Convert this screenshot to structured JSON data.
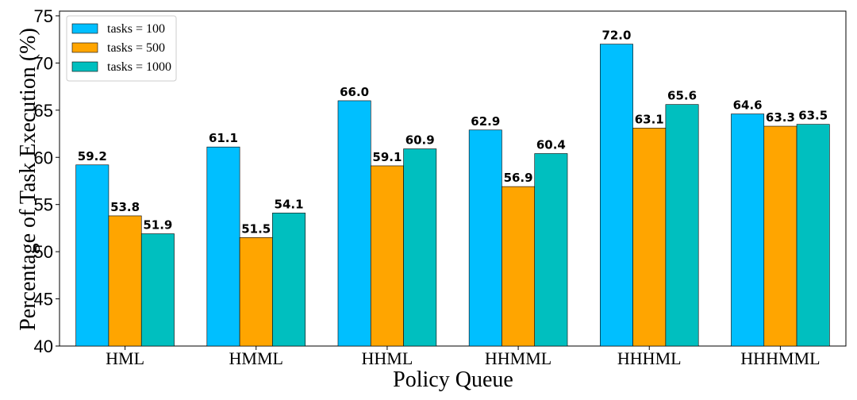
{
  "chart_data": {
    "type": "bar",
    "xlabel": "Policy Queue",
    "ylabel": "Percentage of Task Execution (%)",
    "ylim": [
      40,
      75.5
    ],
    "yticks": [
      40,
      45,
      50,
      55,
      60,
      65,
      70,
      75
    ],
    "categories": [
      "HML",
      "HMML",
      "HHML",
      "HHMML",
      "HHHML",
      "HHHMML"
    ],
    "series": [
      {
        "name": "tasks = 100",
        "color": "#00BFFF",
        "values": [
          59.2,
          61.1,
          66.0,
          62.9,
          72.0,
          64.6
        ]
      },
      {
        "name": "tasks = 500",
        "color": "#FFA500",
        "values": [
          53.8,
          51.5,
          59.1,
          56.9,
          63.1,
          63.3
        ]
      },
      {
        "name": "tasks = 1000",
        "color": "#00BFBF",
        "values": [
          51.9,
          54.1,
          60.9,
          60.4,
          65.6,
          63.5
        ]
      }
    ],
    "value_labels": [
      [
        "59.2",
        "61.1",
        "66.0",
        "62.9",
        "72.0",
        "64.6"
      ],
      [
        "53.8",
        "51.5",
        "59.1",
        "56.9",
        "63.1",
        "63.3"
      ],
      [
        "51.9",
        "54.1",
        "60.9",
        "60.4",
        "65.6",
        "63.5"
      ]
    ],
    "legend_position": "top-left",
    "grid": false
  }
}
